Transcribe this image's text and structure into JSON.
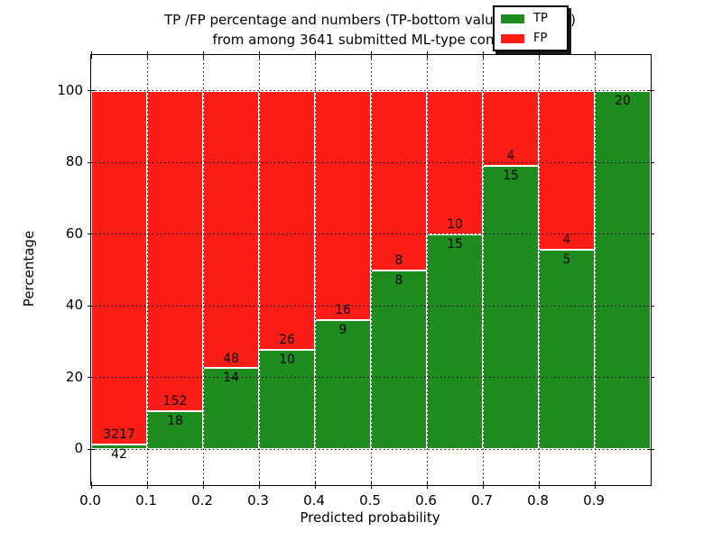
{
  "title": {
    "line1": "TP /FP percentage and numbers (TP-bottom value, FP-upper)",
    "line2": "from among 3641 submitted ML-type contacts"
  },
  "axes": {
    "xlabel": "Predicted probability",
    "ylabel": "Percentage",
    "x_tick_labels": [
      "0.0",
      "0.1",
      "0.2",
      "0.3",
      "0.4",
      "0.5",
      "0.6",
      "0.7",
      "0.8",
      "0.9"
    ],
    "y_tick_labels": [
      "0",
      "20",
      "40",
      "60",
      "80",
      "100"
    ],
    "xlim": [
      0.0,
      1.0
    ],
    "ylim": [
      -10,
      110
    ]
  },
  "legend": {
    "position": "upper right",
    "entries": [
      {
        "label": "TP",
        "color": "#1e8c1e"
      },
      {
        "label": "FP",
        "color": "#fc1e16"
      }
    ]
  },
  "colors": {
    "tp_green": "#1e8c1e",
    "fp_red": "#fc1e16",
    "background": "#ffffff",
    "frame": "#000000",
    "grid": "#000000",
    "bar_edge": "#ffffff"
  },
  "chart_data": {
    "type": "bar",
    "stacked": true,
    "normalized": "each bin stacks TP+FP to 100 percent",
    "title": "TP /FP percentage and numbers (TP-bottom value, FP-upper) from among 3641 submitted ML-type contacts",
    "xlabel": "Predicted probability",
    "ylabel": "Percentage",
    "total_contacts": 3641,
    "bin_width": 0.1,
    "bin_starts": [
      0.0,
      0.1,
      0.2,
      0.3,
      0.4,
      0.5,
      0.6,
      0.7,
      0.8,
      0.9
    ],
    "series": [
      {
        "name": "TP",
        "color": "#1e8c1e",
        "counts": [
          42,
          18,
          14,
          10,
          9,
          8,
          15,
          15,
          5,
          20
        ]
      },
      {
        "name": "FP",
        "color": "#fc1e16",
        "counts": [
          3217,
          152,
          48,
          26,
          16,
          8,
          10,
          4,
          4,
          0
        ]
      }
    ],
    "tp_percent": [
      1.29,
      10.59,
      22.58,
      27.78,
      36.0,
      50.0,
      60.0,
      78.95,
      55.56,
      100.0
    ],
    "x_ticks": [
      0.0,
      0.1,
      0.2,
      0.3,
      0.4,
      0.5,
      0.6,
      0.7,
      0.8,
      0.9
    ],
    "y_ticks": [
      0,
      20,
      40,
      60,
      80,
      100
    ],
    "xlim": [
      0.0,
      1.0
    ],
    "ylim": [
      -10,
      110
    ],
    "grid": "dotted black on both axes",
    "legend_position": "upper right"
  }
}
